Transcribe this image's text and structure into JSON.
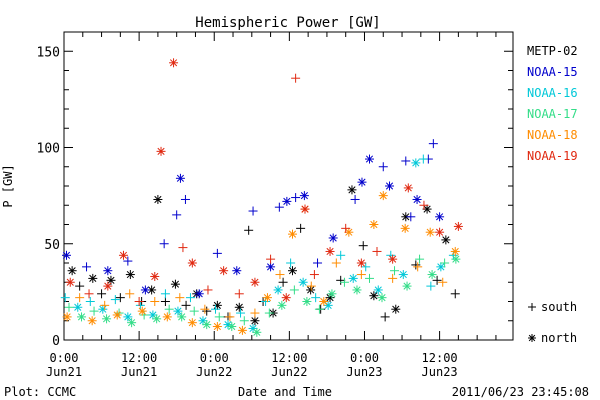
{
  "chart_data": {
    "type": "scatter",
    "title": "Hemispheric Power [GW]",
    "ylabel": "P [GW]",
    "xlabel": "Date and Time",
    "ylim": [
      0,
      160
    ],
    "xlim_hours": [
      0,
      72
    ],
    "y_major_ticks": [
      0,
      50,
      100,
      150
    ],
    "x_ticks": [
      {
        "label": "0:00",
        "sublabel": "Jun21"
      },
      {
        "label": "12:00",
        "sublabel": "Jun21"
      },
      {
        "label": "0:00",
        "sublabel": "Jun22"
      },
      {
        "label": "12:00",
        "sublabel": "Jun22"
      },
      {
        "label": "0:00",
        "sublabel": "Jun23"
      },
      {
        "label": "12:00",
        "sublabel": "Jun23"
      }
    ],
    "grid": false,
    "legend_position": "right",
    "series": [
      {
        "name": "METP-02",
        "color": "#000000",
        "points": [
          [
            1.3,
            36,
            "n"
          ],
          [
            2.5,
            28,
            "s"
          ],
          [
            4.6,
            32,
            "n"
          ],
          [
            6.0,
            24,
            "s"
          ],
          [
            7.5,
            31,
            "n"
          ],
          [
            9.0,
            22,
            "s"
          ],
          [
            10.6,
            34,
            "n"
          ],
          [
            12.4,
            20,
            "s"
          ],
          [
            14.0,
            26,
            "n"
          ],
          [
            15.0,
            73,
            "n"
          ],
          [
            16.2,
            20,
            "s"
          ],
          [
            17.8,
            29,
            "n"
          ],
          [
            19.5,
            18,
            "s"
          ],
          [
            21.2,
            24,
            "n"
          ],
          [
            22.8,
            15,
            "s"
          ],
          [
            24.5,
            18,
            "n"
          ],
          [
            26.2,
            12,
            "s"
          ],
          [
            28.0,
            17,
            "n"
          ],
          [
            29.5,
            57,
            "s"
          ],
          [
            30.5,
            10,
            "n"
          ],
          [
            31.8,
            20,
            "s"
          ],
          [
            33.4,
            14,
            "n"
          ],
          [
            35.0,
            30,
            "s"
          ],
          [
            36.5,
            36,
            "n"
          ],
          [
            37.8,
            58,
            "s"
          ],
          [
            39.4,
            26,
            "n"
          ],
          [
            41.0,
            16,
            "s"
          ],
          [
            42.5,
            22,
            "n"
          ],
          [
            44.2,
            31,
            "s"
          ],
          [
            46.0,
            78,
            "n"
          ],
          [
            47.8,
            49,
            "s"
          ],
          [
            49.5,
            23,
            "n"
          ],
          [
            51.3,
            12,
            "s"
          ],
          [
            53.0,
            16,
            "n"
          ],
          [
            54.6,
            64,
            "n"
          ],
          [
            56.2,
            39,
            "s"
          ],
          [
            58.0,
            68,
            "n"
          ],
          [
            59.6,
            31,
            "s"
          ],
          [
            61.0,
            52,
            "n"
          ],
          [
            62.5,
            24,
            "s"
          ]
        ]
      },
      {
        "name": "NOAA-15",
        "color": "#0000cc",
        "points": [
          [
            0.4,
            44,
            "n"
          ],
          [
            3.6,
            38,
            "s"
          ],
          [
            7.0,
            36,
            "n"
          ],
          [
            10.2,
            41,
            "s"
          ],
          [
            13.0,
            26,
            "n"
          ],
          [
            16.0,
            50,
            "s"
          ],
          [
            18.6,
            84,
            "n"
          ],
          [
            19.4,
            73,
            "s"
          ],
          [
            18.0,
            65,
            "s"
          ],
          [
            21.6,
            24,
            "n"
          ],
          [
            24.5,
            45,
            "s"
          ],
          [
            27.6,
            36,
            "n"
          ],
          [
            30.2,
            67,
            "s"
          ],
          [
            33.0,
            38,
            "n"
          ],
          [
            34.4,
            69,
            "s"
          ],
          [
            35.6,
            72,
            "n"
          ],
          [
            37.0,
            74,
            "s"
          ],
          [
            38.4,
            75,
            "n"
          ],
          [
            40.5,
            40,
            "s"
          ],
          [
            43.0,
            53,
            "n"
          ],
          [
            46.5,
            73,
            "s"
          ],
          [
            47.6,
            82,
            "n"
          ],
          [
            48.8,
            94,
            "n"
          ],
          [
            51.0,
            90,
            "s"
          ],
          [
            52.0,
            80,
            "n"
          ],
          [
            54.6,
            93,
            "s"
          ],
          [
            55.4,
            64,
            "s"
          ],
          [
            56.4,
            73,
            "n"
          ],
          [
            58.2,
            94,
            "s"
          ],
          [
            59.0,
            102,
            "s"
          ],
          [
            60.0,
            64,
            "n"
          ]
        ]
      },
      {
        "name": "NOAA-16",
        "color": "#00c8d8",
        "points": [
          [
            0.2,
            22,
            "s"
          ],
          [
            2.2,
            17,
            "n"
          ],
          [
            4.2,
            20,
            "s"
          ],
          [
            6.2,
            16,
            "n"
          ],
          [
            8.2,
            21,
            "s"
          ],
          [
            10.2,
            12,
            "n"
          ],
          [
            12.2,
            18,
            "s"
          ],
          [
            14.2,
            13,
            "n"
          ],
          [
            16.2,
            24,
            "s"
          ],
          [
            18.2,
            15,
            "n"
          ],
          [
            20.2,
            22,
            "s"
          ],
          [
            22.2,
            10,
            "n"
          ],
          [
            24.2,
            16,
            "s"
          ],
          [
            26.2,
            8,
            "n"
          ],
          [
            28.2,
            14,
            "s"
          ],
          [
            30.2,
            6,
            "n"
          ],
          [
            32.2,
            20,
            "s"
          ],
          [
            34.2,
            26,
            "n"
          ],
          [
            36.2,
            40,
            "s"
          ],
          [
            38.2,
            30,
            "n"
          ],
          [
            40.2,
            22,
            "s"
          ],
          [
            42.2,
            18,
            "n"
          ],
          [
            44.2,
            44,
            "s"
          ],
          [
            46.2,
            32,
            "n"
          ],
          [
            48.2,
            38,
            "s"
          ],
          [
            50.2,
            26,
            "n"
          ],
          [
            52.2,
            44,
            "s"
          ],
          [
            54.2,
            34,
            "n"
          ],
          [
            56.2,
            92,
            "n"
          ],
          [
            57.4,
            94,
            "s"
          ],
          [
            58.6,
            28,
            "s"
          ],
          [
            60.2,
            38,
            "n"
          ],
          [
            62.2,
            44,
            "s"
          ]
        ]
      },
      {
        "name": "NOAA-17",
        "color": "#33dd88",
        "points": [
          [
            0.8,
            17,
            "s"
          ],
          [
            2.8,
            12,
            "n"
          ],
          [
            4.8,
            15,
            "s"
          ],
          [
            6.8,
            11,
            "n"
          ],
          [
            8.8,
            14,
            "s"
          ],
          [
            10.8,
            9,
            "n"
          ],
          [
            12.8,
            13,
            "s"
          ],
          [
            14.8,
            11,
            "n"
          ],
          [
            16.8,
            16,
            "s"
          ],
          [
            18.8,
            12,
            "n"
          ],
          [
            20.8,
            15,
            "s"
          ],
          [
            22.8,
            8,
            "n"
          ],
          [
            24.8,
            12,
            "s"
          ],
          [
            26.8,
            7,
            "n"
          ],
          [
            28.8,
            10,
            "s"
          ],
          [
            30.8,
            4,
            "n"
          ],
          [
            32.8,
            14,
            "s"
          ],
          [
            34.8,
            18,
            "n"
          ],
          [
            36.8,
            26,
            "s"
          ],
          [
            38.8,
            20,
            "n"
          ],
          [
            40.8,
            16,
            "s"
          ],
          [
            42.8,
            24,
            "n"
          ],
          [
            44.8,
            30,
            "s"
          ],
          [
            46.8,
            26,
            "n"
          ],
          [
            48.8,
            32,
            "s"
          ],
          [
            50.8,
            22,
            "n"
          ],
          [
            52.8,
            36,
            "s"
          ],
          [
            54.8,
            28,
            "n"
          ],
          [
            56.8,
            42,
            "s"
          ],
          [
            58.8,
            34,
            "n"
          ],
          [
            60.8,
            40,
            "s"
          ],
          [
            62.6,
            42,
            "n"
          ]
        ]
      },
      {
        "name": "NOAA-18",
        "color": "#ff8c00",
        "points": [
          [
            0.5,
            12,
            "n"
          ],
          [
            2.5,
            22,
            "s"
          ],
          [
            4.5,
            10,
            "n"
          ],
          [
            6.5,
            18,
            "s"
          ],
          [
            8.5,
            13,
            "n"
          ],
          [
            10.5,
            24,
            "s"
          ],
          [
            12.5,
            15,
            "n"
          ],
          [
            14.5,
            20,
            "s"
          ],
          [
            16.5,
            12,
            "n"
          ],
          [
            18.5,
            22,
            "s"
          ],
          [
            20.5,
            9,
            "n"
          ],
          [
            22.5,
            16,
            "s"
          ],
          [
            24.5,
            7,
            "n"
          ],
          [
            26.5,
            12,
            "s"
          ],
          [
            28.5,
            5,
            "n"
          ],
          [
            30.5,
            14,
            "s"
          ],
          [
            32.5,
            22,
            "n"
          ],
          [
            34.5,
            34,
            "s"
          ],
          [
            36.5,
            55,
            "n"
          ],
          [
            38.5,
            68,
            "n"
          ],
          [
            39.5,
            28,
            "s"
          ],
          [
            41.5,
            20,
            "n"
          ],
          [
            43.5,
            40,
            "s"
          ],
          [
            45.5,
            56,
            "n"
          ],
          [
            47.5,
            34,
            "s"
          ],
          [
            49.5,
            60,
            "n"
          ],
          [
            51.0,
            75,
            "n"
          ],
          [
            52.5,
            32,
            "s"
          ],
          [
            54.5,
            58,
            "n"
          ],
          [
            56.5,
            38,
            "s"
          ],
          [
            58.5,
            56,
            "n"
          ],
          [
            60.5,
            30,
            "s"
          ],
          [
            62.5,
            46,
            "n"
          ]
        ]
      },
      {
        "name": "NOAA-19",
        "color": "#e02810",
        "points": [
          [
            1.0,
            30,
            "n"
          ],
          [
            4.0,
            24,
            "s"
          ],
          [
            7.0,
            28,
            "n"
          ],
          [
            9.5,
            44,
            "n"
          ],
          [
            12.0,
            20,
            "s"
          ],
          [
            14.5,
            33,
            "n"
          ],
          [
            15.5,
            98,
            "n"
          ],
          [
            17.5,
            144,
            "n"
          ],
          [
            19.0,
            48,
            "s"
          ],
          [
            20.5,
            40,
            "n"
          ],
          [
            23.0,
            26,
            "s"
          ],
          [
            25.5,
            36,
            "n"
          ],
          [
            28.0,
            24,
            "s"
          ],
          [
            30.5,
            30,
            "n"
          ],
          [
            33.0,
            42,
            "s"
          ],
          [
            35.5,
            22,
            "n"
          ],
          [
            37.0,
            136,
            "s"
          ],
          [
            38.5,
            68,
            "n"
          ],
          [
            40.0,
            34,
            "s"
          ],
          [
            42.5,
            46,
            "n"
          ],
          [
            45.0,
            58,
            "s"
          ],
          [
            47.5,
            40,
            "n"
          ],
          [
            50.0,
            46,
            "s"
          ],
          [
            52.5,
            42,
            "n"
          ],
          [
            55.0,
            79,
            "n"
          ],
          [
            57.5,
            70,
            "s"
          ],
          [
            60.0,
            56,
            "n"
          ],
          [
            63.0,
            59,
            "n"
          ]
        ]
      }
    ],
    "marker_legend": [
      {
        "symbol": "+",
        "label": "south"
      },
      {
        "symbol": "*",
        "label": "north"
      }
    ]
  },
  "footer": {
    "left": "Plot: CCMC",
    "right": "2011/06/23 23:45:08"
  }
}
